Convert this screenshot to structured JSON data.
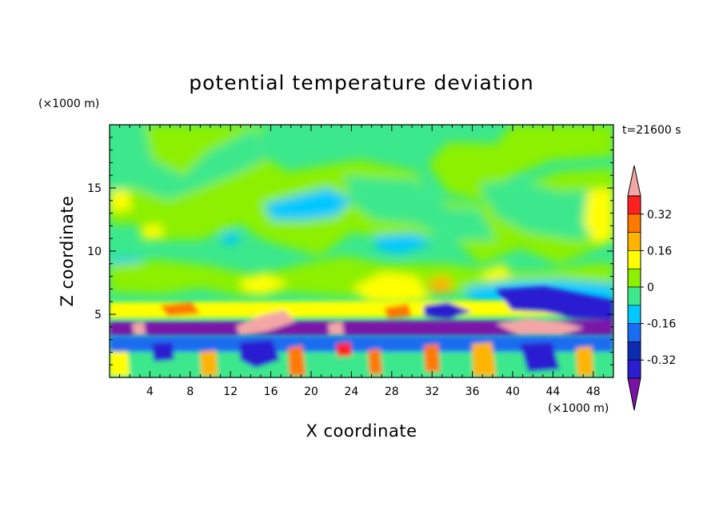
{
  "chart_data": {
    "type": "heatmap",
    "title": "potential temperature deviation",
    "xlabel": "X coordinate",
    "ylabel": "Z coordinate",
    "x_unit": "(×1000 m)",
    "y_unit": "(×1000 m)",
    "time_label": "t=21600 s",
    "xlim": [
      0,
      50
    ],
    "ylim": [
      0,
      20
    ],
    "x_ticks": [
      4,
      8,
      12,
      16,
      20,
      24,
      28,
      32,
      36,
      40,
      44,
      48
    ],
    "y_ticks": [
      5,
      10,
      15
    ],
    "grid": false,
    "colorbar": {
      "levels": [
        -0.4,
        -0.32,
        -0.24,
        -0.16,
        -0.08,
        0,
        0.08,
        0.16,
        0.24,
        0.32,
        0.4
      ],
      "colors": [
        "#7b12a8",
        "#2b1dd0",
        "#0c2bb0",
        "#1a6cf0",
        "#00c8ff",
        "#3ce88c",
        "#8cf000",
        "#ffff00",
        "#ffb400",
        "#ff7800",
        "#ff2020",
        "#f4a6a6"
      ],
      "tick_labels": [
        "0.32",
        "0.16",
        "0",
        "-0.16",
        "-0.32"
      ],
      "tick_values": [
        0.32,
        0.16,
        0,
        -0.16,
        -0.32
      ],
      "extend": "both"
    }
  }
}
